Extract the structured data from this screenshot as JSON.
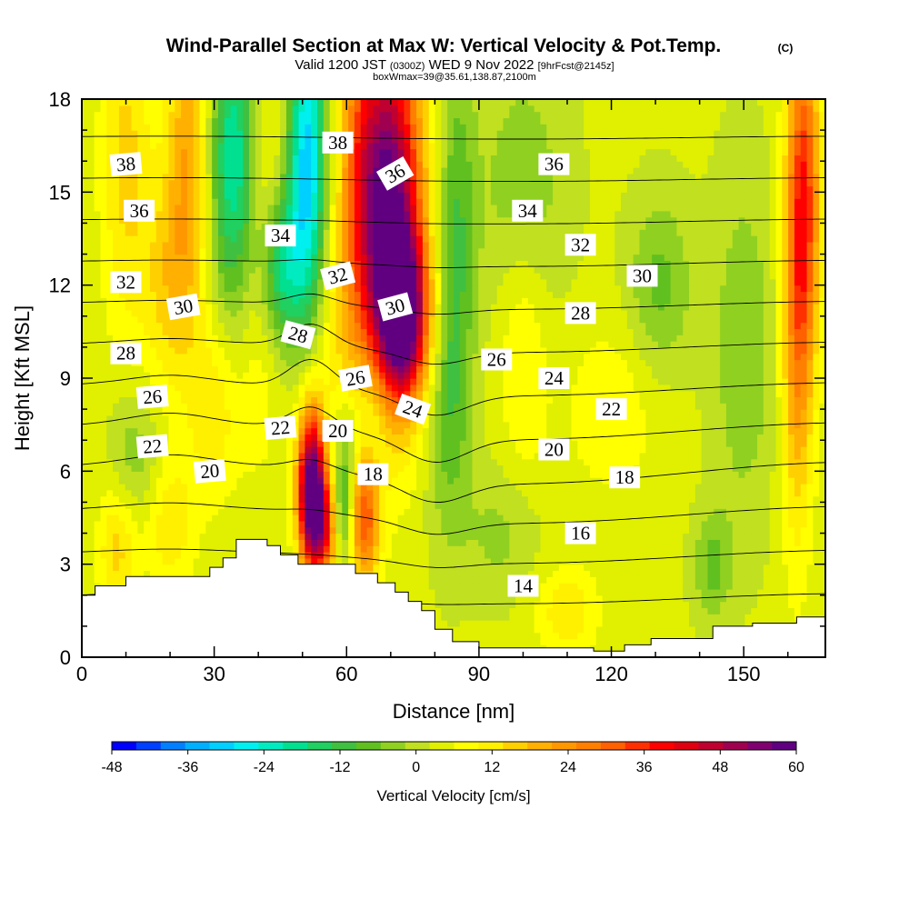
{
  "title": {
    "main": "Wind-Parallel Section at Max W: Vertical Velocity & Pot.Temp.",
    "copyright": "(C)",
    "valid_prefix": "Valid 1200 JST",
    "valid_zulu": "(0300Z)",
    "valid_date": "WED 9 Nov 2022",
    "forecast": "[9hrFcst@2145z]",
    "box": "boxWmax=39@35.61,138.87,2100m"
  },
  "chart_data": {
    "type": "heatmap",
    "xlabel": "Distance [nm]",
    "ylabel": "Height [Kft MSL]",
    "xlim": [
      0,
      168.5
    ],
    "ylim": [
      0,
      18
    ],
    "x_ticks": [
      0,
      30,
      60,
      90,
      120,
      150
    ],
    "y_ticks": [
      0,
      3,
      6,
      9,
      12,
      15,
      18
    ],
    "terrain": [
      [
        0,
        2.0
      ],
      [
        3,
        2.0
      ],
      [
        3,
        2.3
      ],
      [
        10,
        2.3
      ],
      [
        10,
        2.6
      ],
      [
        18,
        2.6
      ],
      [
        18,
        2.6
      ],
      [
        29,
        2.6
      ],
      [
        29,
        2.9
      ],
      [
        32,
        2.9
      ],
      [
        32,
        3.2
      ],
      [
        35,
        3.2
      ],
      [
        35,
        3.8
      ],
      [
        42,
        3.8
      ],
      [
        42,
        3.6
      ],
      [
        45,
        3.6
      ],
      [
        45,
        3.3
      ],
      [
        49,
        3.3
      ],
      [
        49,
        3.0
      ],
      [
        62,
        3.0
      ],
      [
        62,
        2.7
      ],
      [
        67,
        2.7
      ],
      [
        67,
        2.4
      ],
      [
        71,
        2.4
      ],
      [
        71,
        2.1
      ],
      [
        74,
        2.1
      ],
      [
        74,
        1.8
      ],
      [
        77,
        1.8
      ],
      [
        77,
        1.5
      ],
      [
        80,
        1.5
      ],
      [
        80,
        0.9
      ],
      [
        84,
        0.9
      ],
      [
        84,
        0.5
      ],
      [
        90,
        0.5
      ],
      [
        90,
        0.3
      ],
      [
        116,
        0.3
      ],
      [
        116,
        0.2
      ],
      [
        123,
        0.2
      ],
      [
        123,
        0.4
      ],
      [
        129,
        0.4
      ],
      [
        129,
        0.6
      ],
      [
        143,
        0.6
      ],
      [
        143,
        1.0
      ],
      [
        152,
        1.0
      ],
      [
        152,
        1.1
      ],
      [
        162,
        1.1
      ],
      [
        162,
        1.3
      ],
      [
        168.5,
        1.3
      ]
    ],
    "vertical_velocity_features": [
      {
        "x": 70,
        "y": 14.5,
        "value": 55,
        "sx": 5,
        "sy": 4.2
      },
      {
        "x": 73,
        "y": 11.0,
        "value": 45,
        "sx": 4,
        "sy": 1.8
      },
      {
        "x": 52,
        "y": 5.5,
        "value": 58,
        "sx": 2.2,
        "sy": 1.8
      },
      {
        "x": 55,
        "y": 4.2,
        "value": 30,
        "sx": 2.5,
        "sy": 1.2
      },
      {
        "x": 64,
        "y": 4.5,
        "value": 28,
        "sx": 2.5,
        "sy": 1.5
      },
      {
        "x": 51,
        "y": 16,
        "value": -34,
        "sx": 3,
        "sy": 3.5
      },
      {
        "x": 35,
        "y": 16,
        "value": -28,
        "sx": 4,
        "sy": 3.5
      },
      {
        "x": 45,
        "y": 12.5,
        "value": -22,
        "sx": 3.5,
        "sy": 1.8
      },
      {
        "x": 40,
        "y": 14.5,
        "value": 12,
        "sx": 4,
        "sy": 5
      },
      {
        "x": 24,
        "y": 16,
        "value": 18,
        "sx": 3.5,
        "sy": 4
      },
      {
        "x": 19,
        "y": 12,
        "value": 10,
        "sx": 4,
        "sy": 2.5
      },
      {
        "x": 10,
        "y": 16,
        "value": 12,
        "sx": 4,
        "sy": 4
      },
      {
        "x": 30,
        "y": 8,
        "value": 10,
        "sx": 4,
        "sy": 2
      },
      {
        "x": 63,
        "y": 16,
        "value": 18,
        "sx": 3.5,
        "sy": 4
      },
      {
        "x": 20,
        "y": 4.3,
        "value": 10,
        "sx": 4,
        "sy": 1.5
      },
      {
        "x": 8,
        "y": 3.5,
        "value": 12,
        "sx": 3,
        "sy": 1.5
      },
      {
        "x": 85,
        "y": 14,
        "value": -12,
        "sx": 3,
        "sy": 4
      },
      {
        "x": 83,
        "y": 8,
        "value": -10,
        "sx": 3.5,
        "sy": 3
      },
      {
        "x": 100,
        "y": 15,
        "value": -8,
        "sx": 7,
        "sy": 3
      },
      {
        "x": 131,
        "y": 12,
        "value": -10,
        "sx": 5,
        "sy": 2
      },
      {
        "x": 143,
        "y": 3,
        "value": -10,
        "sx": 3,
        "sy": 1.2
      },
      {
        "x": 150,
        "y": 10,
        "value": -8,
        "sx": 5,
        "sy": 4
      },
      {
        "x": 162,
        "y": 11,
        "value": 20,
        "sx": 2.5,
        "sy": 5
      },
      {
        "x": 164,
        "y": 15,
        "value": 25,
        "sx": 2.5,
        "sy": 4
      },
      {
        "x": 59,
        "y": 10,
        "value": 8,
        "sx": 4,
        "sy": 3
      },
      {
        "x": 60,
        "y": 6.5,
        "value": -12,
        "sx": 2,
        "sy": 1.5
      },
      {
        "x": 59,
        "y": 4.5,
        "value": -18,
        "sx": 1.8,
        "sy": 1.2
      },
      {
        "x": 66,
        "y": 8,
        "value": -8,
        "sx": 3,
        "sy": 1.5
      },
      {
        "x": 100,
        "y": 10,
        "value": 8,
        "sx": 4,
        "sy": 3
      },
      {
        "x": 120,
        "y": 8,
        "value": 6,
        "sx": 8,
        "sy": 2
      },
      {
        "x": 110,
        "y": 1.5,
        "value": 10,
        "sx": 5,
        "sy": 1
      },
      {
        "x": 95,
        "y": 4,
        "value": -6,
        "sx": 6,
        "sy": 1.5
      },
      {
        "x": 12,
        "y": 6.5,
        "value": -8,
        "sx": 4,
        "sy": 1.5
      }
    ],
    "theta_contours": {
      "levels": [
        14,
        16,
        18,
        20,
        22,
        24,
        26,
        28,
        30,
        32,
        34,
        36,
        38
      ],
      "labels": [
        {
          "text": "38",
          "x": 10,
          "y": 15.9,
          "rotate": -5
        },
        {
          "text": "36",
          "x": 13,
          "y": 14.4,
          "rotate": 0
        },
        {
          "text": "32",
          "x": 10,
          "y": 12.1,
          "rotate": 0
        },
        {
          "text": "30",
          "x": 23,
          "y": 11.3,
          "rotate": -10
        },
        {
          "text": "28",
          "x": 10,
          "y": 9.8,
          "rotate": 0
        },
        {
          "text": "26",
          "x": 16,
          "y": 8.4,
          "rotate": -5
        },
        {
          "text": "22",
          "x": 16,
          "y": 6.8,
          "rotate": -5
        },
        {
          "text": "20",
          "x": 29,
          "y": 6.0,
          "rotate": -5
        },
        {
          "text": "34",
          "x": 45,
          "y": 13.6,
          "rotate": 0
        },
        {
          "text": "28",
          "x": 49,
          "y": 10.4,
          "rotate": 15
        },
        {
          "text": "22",
          "x": 45,
          "y": 7.4,
          "rotate": -5
        },
        {
          "text": "38",
          "x": 58,
          "y": 16.6,
          "rotate": 0
        },
        {
          "text": "32",
          "x": 58,
          "y": 12.3,
          "rotate": -15
        },
        {
          "text": "26",
          "x": 62,
          "y": 9.0,
          "rotate": -10
        },
        {
          "text": "20",
          "x": 58,
          "y": 7.3,
          "rotate": 0
        },
        {
          "text": "18",
          "x": 66,
          "y": 5.9,
          "rotate": 0
        },
        {
          "text": "36",
          "x": 71,
          "y": 15.6,
          "rotate": -30
        },
        {
          "text": "30",
          "x": 71,
          "y": 11.3,
          "rotate": -15
        },
        {
          "text": "24",
          "x": 75,
          "y": 8.0,
          "rotate": 20
        },
        {
          "text": "26",
          "x": 94,
          "y": 9.6,
          "rotate": 0
        },
        {
          "text": "36",
          "x": 107,
          "y": 15.9,
          "rotate": 0
        },
        {
          "text": "34",
          "x": 101,
          "y": 14.4,
          "rotate": 0
        },
        {
          "text": "32",
          "x": 113,
          "y": 13.3,
          "rotate": 0
        },
        {
          "text": "30",
          "x": 127,
          "y": 12.3,
          "rotate": 0
        },
        {
          "text": "28",
          "x": 113,
          "y": 11.1,
          "rotate": 0
        },
        {
          "text": "24",
          "x": 107,
          "y": 9.0,
          "rotate": 0
        },
        {
          "text": "22",
          "x": 120,
          "y": 8.0,
          "rotate": 0
        },
        {
          "text": "20",
          "x": 107,
          "y": 6.7,
          "rotate": 0
        },
        {
          "text": "18",
          "x": 123,
          "y": 5.8,
          "rotate": 0
        },
        {
          "text": "16",
          "x": 113,
          "y": 4.0,
          "rotate": 0
        },
        {
          "text": "14",
          "x": 100,
          "y": 2.3,
          "rotate": 0
        }
      ]
    },
    "colorbar": {
      "title": "Vertical Velocity [cm/s]",
      "min": -48,
      "max": 60,
      "tick_labels": [
        "-48",
        "-36",
        "-24",
        "-12",
        "0",
        "12",
        "24",
        "36",
        "48",
        "60"
      ],
      "colors": [
        "#0000ff",
        "#0040ff",
        "#0080ff",
        "#00b0ff",
        "#00d0ff",
        "#00f0f0",
        "#00ecc0",
        "#00e090",
        "#20d060",
        "#40c040",
        "#60c020",
        "#90d020",
        "#c0e020",
        "#e0f000",
        "#ffff00",
        "#fff000",
        "#ffd000",
        "#ffb000",
        "#ff9800",
        "#ff8000",
        "#ff6000",
        "#ff3000",
        "#ff0000",
        "#e00010",
        "#c00030",
        "#a00050",
        "#800070",
        "#600080"
      ]
    }
  }
}
